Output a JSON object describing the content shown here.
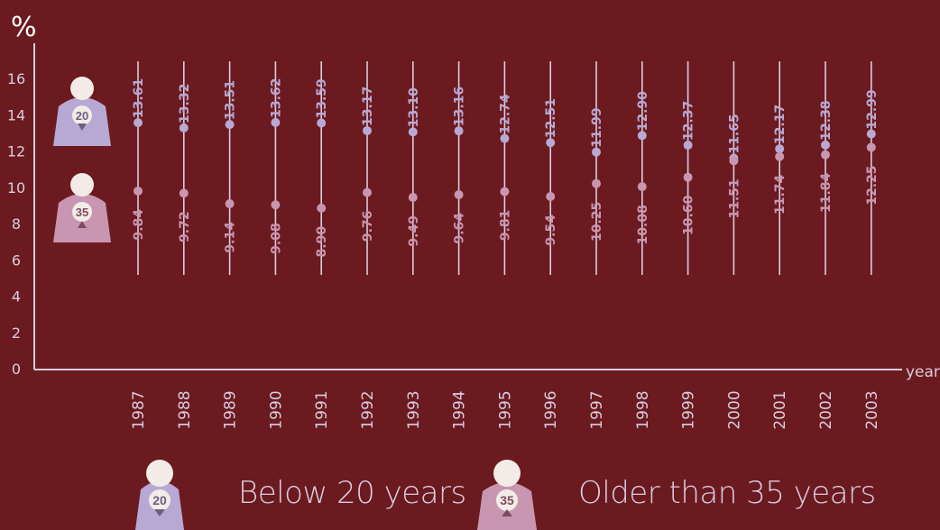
{
  "chart_data": {
    "type": "scatter",
    "title": "",
    "ylabel": "%",
    "xlabel": "year",
    "ylim": [
      0,
      16
    ],
    "yticks": [
      "0",
      "2",
      "4",
      "6",
      "8",
      "10",
      "12",
      "14",
      "16"
    ],
    "categories": [
      "1987",
      "1988",
      "1989",
      "1990",
      "1991",
      "1992",
      "1993",
      "1994",
      "1995",
      "1996",
      "1997",
      "1998",
      "1999",
      "2000",
      "2001",
      "2002",
      "2003"
    ],
    "series": [
      {
        "name": "Below 20 years",
        "color": "#b8a8d4",
        "icon_label": "20",
        "values": [
          13.61,
          13.32,
          13.51,
          13.62,
          13.59,
          13.17,
          13.1,
          13.16,
          12.74,
          12.51,
          11.99,
          12.9,
          12.37,
          11.65,
          12.17,
          12.38,
          12.99
        ],
        "labels": [
          "13.61",
          "13.32",
          "13.51",
          "13.62",
          "13.59",
          "13.17",
          "13.10",
          "13.16",
          "12.74",
          "12.51",
          "11.99",
          "12.90",
          "12.37",
          "11.65",
          "12.17",
          "12.38",
          "12.99"
        ]
      },
      {
        "name": "Older than 35 years",
        "color": "#c896b0",
        "icon_label": "35",
        "values": [
          9.84,
          9.72,
          9.14,
          9.08,
          8.9,
          9.76,
          9.49,
          9.64,
          9.81,
          9.54,
          10.25,
          10.08,
          10.6,
          11.51,
          11.74,
          11.84,
          12.25
        ],
        "labels": [
          "9.84",
          "9.72",
          "9.14",
          "9.08",
          "8.90",
          "9.76",
          "9.49",
          "9.64",
          "9.81",
          "9.54",
          "10.25",
          "10.08",
          "10.60",
          "11.51",
          "11.74",
          "11.84",
          "12.25"
        ]
      }
    ],
    "legend_position": "bottom",
    "grid": false
  },
  "legend": {
    "below_20": {
      "label": "Below 20 years",
      "icon_label": "20"
    },
    "older_35": {
      "label": "Older than 35 years",
      "icon_label": "35"
    }
  }
}
